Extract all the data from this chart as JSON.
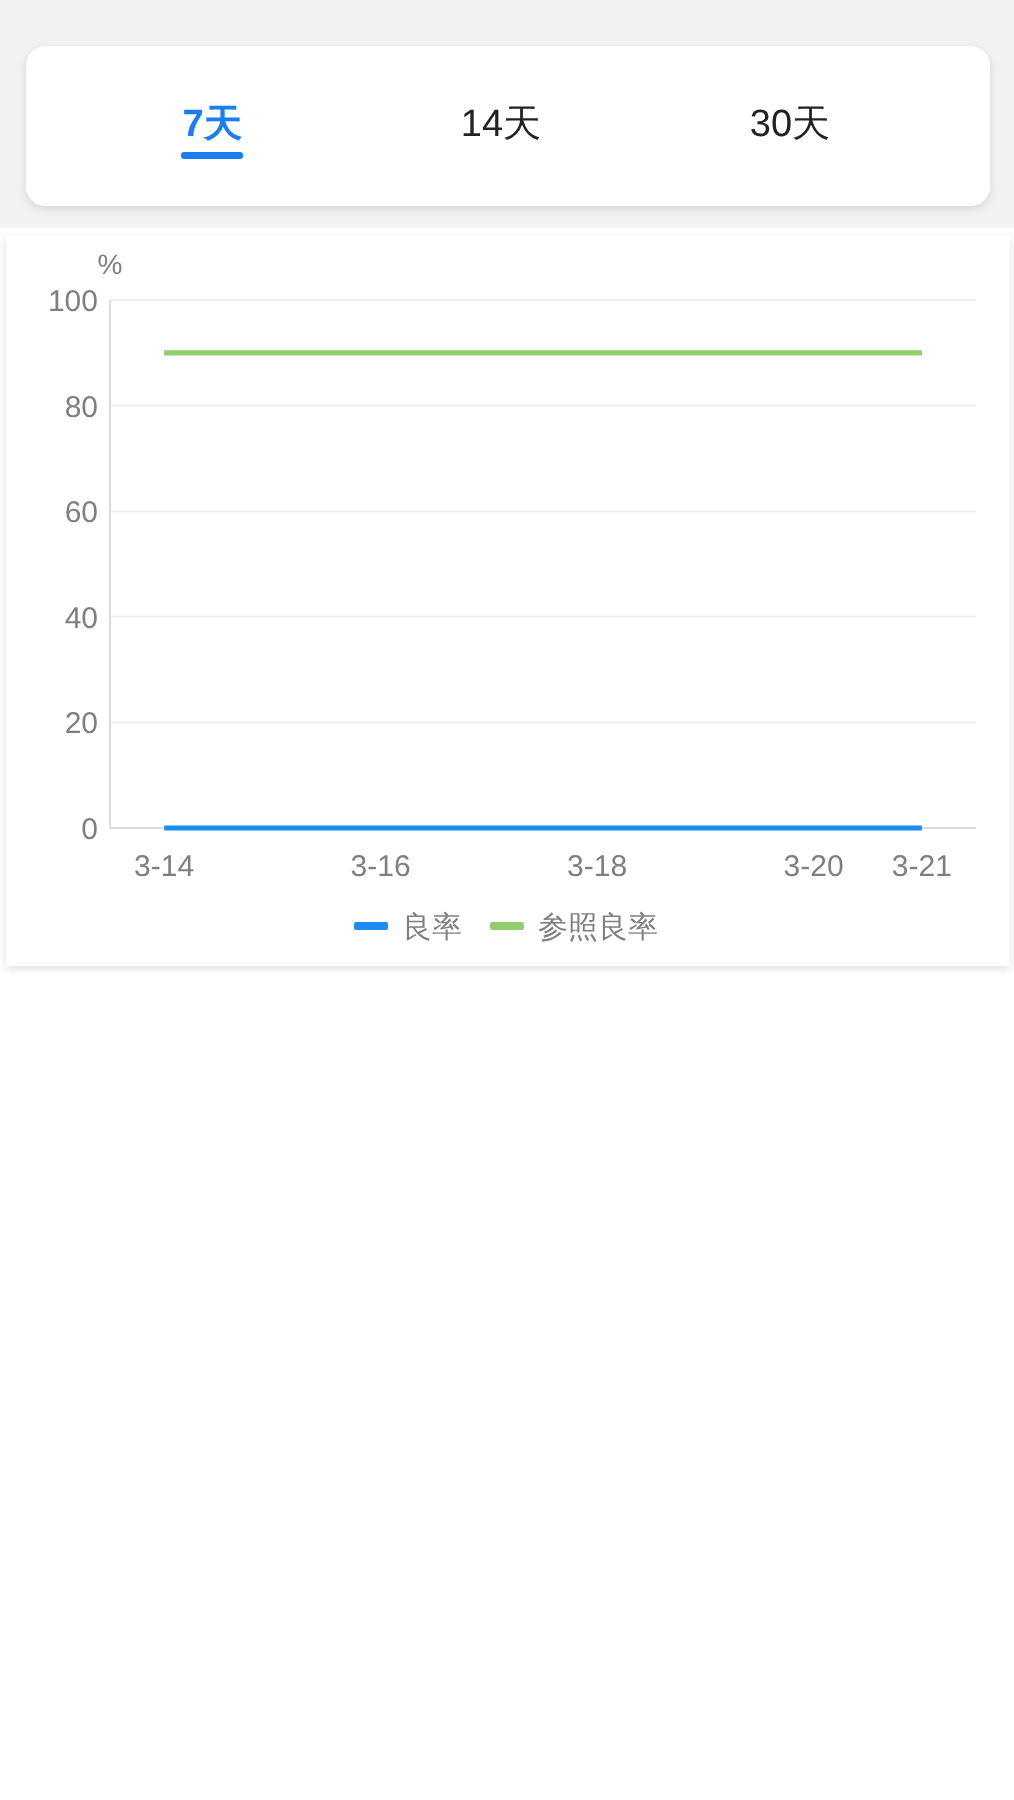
{
  "chart_data": [
    {
      "type": "other",
      "annotations": [
        "7天",
        "14天",
        "30天"
      ]
    },
    {
      "type": "line",
      "ylabel": "%",
      "categories": [
        "3-14",
        null,
        "3-16",
        null,
        "3-18",
        null,
        "3-20",
        "3-21"
      ],
      "series": [
        {
          "name": "良率",
          "color": "#1f8bf5",
          "values": [
            0,
            0,
            0,
            0,
            0,
            0,
            0,
            0
          ]
        },
        {
          "name": "参照良率",
          "color": "#8fcf6c",
          "values": [
            90,
            90,
            90,
            90,
            90,
            90,
            90,
            90
          ]
        }
      ],
      "ylim": [
        0,
        100
      ],
      "yticks": [
        0,
        20,
        40,
        60,
        80,
        100
      ],
      "grid": "y",
      "legend": "bottom",
      "marker": "none",
      "line_style": "solid"
    }
  ]
}
